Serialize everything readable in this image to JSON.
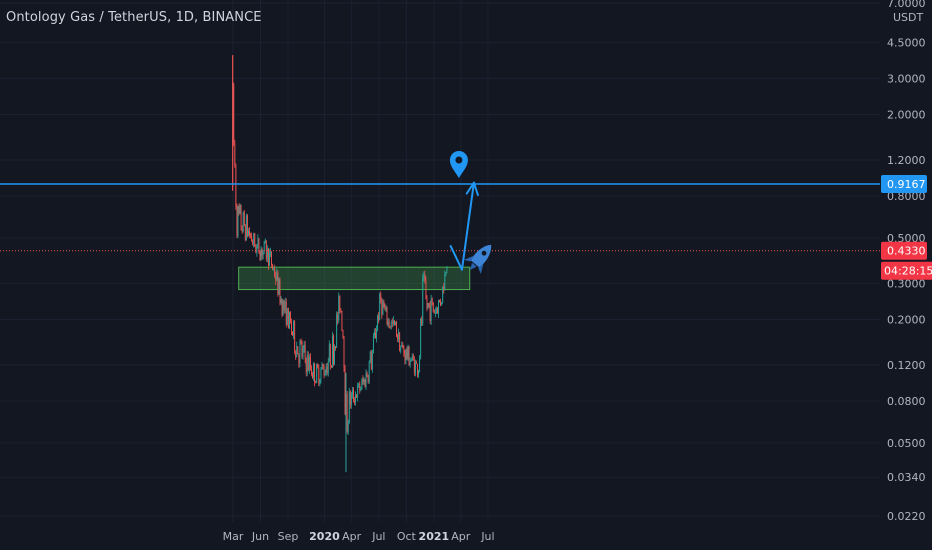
{
  "header": {
    "title": "Ontology Gas / TetherUS, 1D, BINANCE"
  },
  "axis": {
    "currency": "USDT",
    "y_ticks": [
      "7.0000",
      "4.5000",
      "3.0000",
      "2.0000",
      "1.2000",
      "0.8000",
      "0.5000",
      "0.3000",
      "0.2000",
      "0.1200",
      "0.0800",
      "0.0500",
      "0.0340",
      "0.0220"
    ],
    "x_ticks": [
      "Mar",
      "Jun",
      "Sep",
      "2020",
      "Apr",
      "Jul",
      "Oct",
      "2021",
      "Apr",
      "Jul"
    ]
  },
  "badges": {
    "resistance": {
      "label": "0.9167",
      "color": "#2196f3"
    },
    "current": {
      "label": "0.4330",
      "color": "#f23645"
    },
    "countdown": {
      "label": "04:28:15",
      "color": "#f23645"
    }
  },
  "colors": {
    "up": "#26a69a",
    "down": "#ef5350",
    "line": "#2196f3",
    "zone": "#4caf50"
  },
  "chart_data": {
    "type": "candlestick",
    "scale": "log",
    "ylim": [
      0.022,
      7.0
    ],
    "x_range": [
      "2019-02-15",
      "2021-07-20"
    ],
    "series": [
      {
        "values": [
          [
            "2019-02-28",
            3.9,
            0.85
          ],
          [
            "2019-03-15",
            0.9,
            0.42
          ],
          [
            "2019-04-15",
            0.7,
            0.45
          ],
          [
            "2019-05-15",
            0.55,
            0.38
          ],
          [
            "2019-06-15",
            0.52,
            0.36
          ],
          [
            "2019-07-01",
            0.48,
            0.34
          ],
          [
            "2019-07-20",
            0.4,
            0.28
          ],
          [
            "2019-08-10",
            0.3,
            0.2
          ],
          [
            "2019-09-01",
            0.24,
            0.17
          ],
          [
            "2019-10-01",
            0.2,
            0.11
          ],
          [
            "2019-11-01",
            0.16,
            0.1
          ],
          [
            "2019-12-01",
            0.13,
            0.09
          ],
          [
            "2020-01-01",
            0.14,
            0.095
          ],
          [
            "2020-02-01",
            0.2,
            0.11
          ],
          [
            "2020-02-22",
            0.31,
            0.2
          ],
          [
            "2020-03-05",
            0.2,
            0.13
          ],
          [
            "2020-03-13",
            0.11,
            0.036
          ],
          [
            "2020-03-25",
            0.1,
            0.065
          ],
          [
            "2020-04-15",
            0.1,
            0.075
          ],
          [
            "2020-05-15",
            0.12,
            0.085
          ],
          [
            "2020-06-10",
            0.18,
            0.1
          ],
          [
            "2020-06-25",
            0.25,
            0.16
          ],
          [
            "2020-07-08",
            0.31,
            0.2
          ],
          [
            "2020-08-01",
            0.22,
            0.17
          ],
          [
            "2020-08-25",
            0.21,
            0.16
          ],
          [
            "2020-09-15",
            0.17,
            0.12
          ],
          [
            "2020-10-15",
            0.15,
            0.11
          ],
          [
            "2020-11-10",
            0.13,
            0.1
          ],
          [
            "2020-11-25",
            0.42,
            0.14
          ],
          [
            "2020-12-10",
            0.3,
            0.18
          ],
          [
            "2021-01-05",
            0.26,
            0.19
          ],
          [
            "2021-01-25",
            0.3,
            0.21
          ],
          [
            "2021-02-05",
            0.36,
            0.27
          ],
          [
            "2021-02-15",
            0.46,
            0.36
          ]
        ]
      }
    ],
    "annotations": {
      "resistance_price": 0.9167,
      "current_price": 0.433,
      "support_zone": {
        "from": "2019-03-20",
        "to": "2021-05-01",
        "low": 0.28,
        "high": 0.36
      },
      "projection": [
        [
          "2021-02-25",
          0.46
        ],
        [
          "2021-04-05",
          0.35
        ],
        [
          "2021-05-15",
          0.93
        ]
      ]
    }
  }
}
